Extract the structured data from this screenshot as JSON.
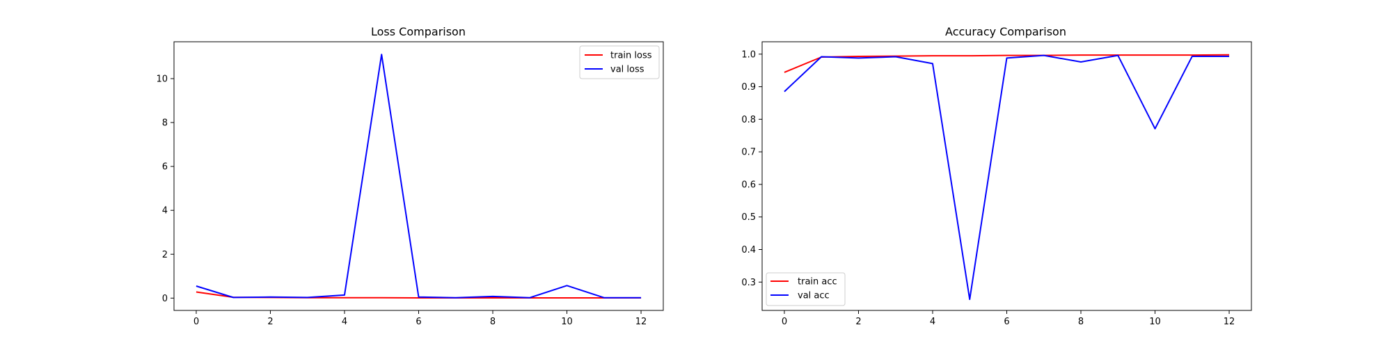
{
  "figure": {
    "background": "#ffffff",
    "frame_color": "#000000"
  },
  "chart_data": [
    {
      "id": "loss",
      "type": "line",
      "title": "Loss Comparison",
      "xlabel": "",
      "ylabel": "",
      "xlim": [
        -0.6,
        12.6
      ],
      "ylim": [
        -0.56,
        11.68
      ],
      "xticks": [
        0,
        2,
        4,
        6,
        8,
        10,
        12
      ],
      "xtick_labels": [
        "0",
        "2",
        "4",
        "6",
        "8",
        "10",
        "12"
      ],
      "yticks": [
        0,
        2,
        4,
        6,
        8,
        10
      ],
      "ytick_labels": [
        "0",
        "2",
        "4",
        "6",
        "8",
        "10"
      ],
      "grid": false,
      "legend_position": "upper right",
      "x": [
        0,
        1,
        2,
        3,
        4,
        5,
        6,
        7,
        8,
        9,
        10,
        11,
        12
      ],
      "series": [
        {
          "name": "train loss",
          "color": "#ff0000",
          "values": [
            0.28,
            0.04,
            0.03,
            0.02,
            0.02,
            0.02,
            0.01,
            0.01,
            0.01,
            0.01,
            0.01,
            0.01,
            0.01
          ]
        },
        {
          "name": "val loss",
          "color": "#0000ff",
          "values": [
            0.55,
            0.03,
            0.05,
            0.03,
            0.14,
            11.1,
            0.05,
            0.02,
            0.08,
            0.02,
            0.57,
            0.02,
            0.02
          ]
        }
      ]
    },
    {
      "id": "accuracy",
      "type": "line",
      "title": "Accuracy Comparison",
      "xlabel": "",
      "ylabel": "",
      "xlim": [
        -0.6,
        12.6
      ],
      "ylim": [
        0.213,
        1.038
      ],
      "xticks": [
        0,
        2,
        4,
        6,
        8,
        10,
        12
      ],
      "xtick_labels": [
        "0",
        "2",
        "4",
        "6",
        "8",
        "10",
        "12"
      ],
      "yticks": [
        0.3,
        0.4,
        0.5,
        0.6,
        0.7,
        0.8,
        0.9,
        1.0
      ],
      "ytick_labels": [
        "0.3",
        "0.4",
        "0.5",
        "0.6",
        "0.7",
        "0.8",
        "0.9",
        "1.0"
      ],
      "grid": false,
      "legend_position": "lower left",
      "x": [
        0,
        1,
        2,
        3,
        4,
        5,
        6,
        7,
        8,
        9,
        10,
        11,
        12
      ],
      "series": [
        {
          "name": "train acc",
          "color": "#ff0000",
          "values": [
            0.944,
            0.991,
            0.993,
            0.994,
            0.995,
            0.995,
            0.996,
            0.996,
            0.997,
            0.997,
            0.997,
            0.997,
            0.998
          ]
        },
        {
          "name": "val acc",
          "color": "#0000ff",
          "values": [
            0.885,
            0.992,
            0.988,
            0.992,
            0.971,
            0.247,
            0.988,
            0.996,
            0.976,
            0.996,
            0.771,
            0.993,
            0.993
          ]
        }
      ]
    }
  ]
}
